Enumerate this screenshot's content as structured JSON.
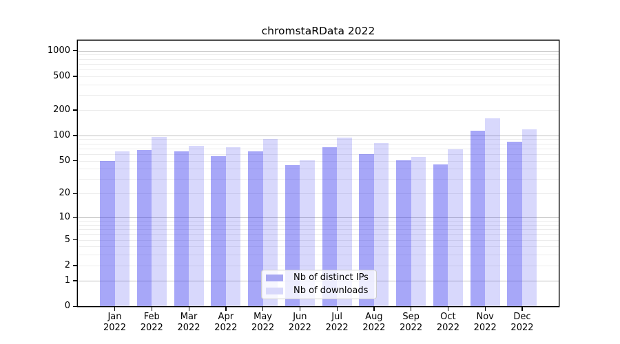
{
  "title": "chromstaRData 2022",
  "legend": {
    "position": "inside-lower-center",
    "items": [
      {
        "label": "Nb of distinct IPs"
      },
      {
        "label": "Nb of downloads"
      }
    ]
  },
  "chart_data": {
    "type": "bar",
    "title": "chromstaRData 2022",
    "x": {
      "months": [
        "Jan",
        "Feb",
        "Mar",
        "Apr",
        "May",
        "Jun",
        "Jul",
        "Aug",
        "Sep",
        "Oct",
        "Nov",
        "Dec"
      ],
      "year": "2022"
    },
    "series": [
      {
        "name": "Nb of distinct IPs",
        "color": "rgba(60,60,240,0.45)",
        "legend_color": "#a7a7f2",
        "values": [
          50,
          67,
          65,
          57,
          65,
          44,
          73,
          60,
          51,
          45,
          114,
          84
        ]
      },
      {
        "name": "Nb of downloads",
        "color": "rgba(60,60,240,0.20)",
        "legend_color": "#d8d8fb",
        "values": [
          65,
          96,
          75,
          72,
          91,
          51,
          94,
          81,
          56,
          68,
          158,
          118
        ]
      }
    ],
    "y_axis": {
      "scale": "log10(value+1)",
      "ticks": [
        0,
        1,
        2,
        5,
        10,
        20,
        50,
        100,
        200,
        500,
        1000
      ],
      "max_log": 3.118,
      "major_grid": [
        1,
        10,
        100,
        1000
      ],
      "minor_grid": [
        2,
        3,
        4,
        5,
        6,
        7,
        8,
        9,
        20,
        30,
        40,
        50,
        60,
        70,
        80,
        90,
        200,
        300,
        400,
        500,
        600,
        700,
        800,
        900
      ]
    },
    "grid": "horizontal major+minor",
    "colors": {
      "grid_major": "#bdbdbd",
      "grid_minor": "#ececec",
      "axis": "#000000"
    }
  }
}
